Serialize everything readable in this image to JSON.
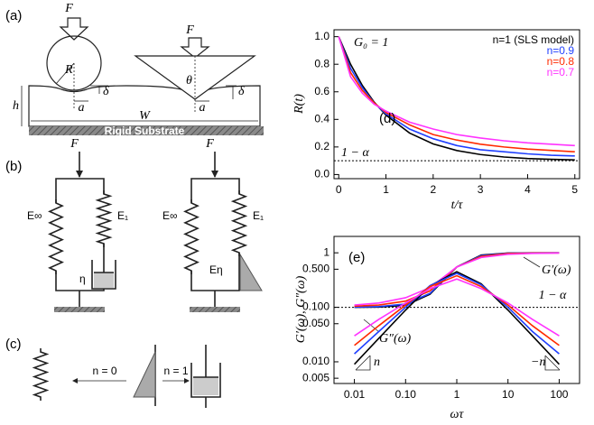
{
  "panel_a": {
    "label": "(a)",
    "forces": [
      "F⃗",
      "F⃗"
    ],
    "radius": "R",
    "angle": "θ",
    "depths": [
      "δ",
      "δ"
    ],
    "contact": [
      "a",
      "a"
    ],
    "height": "h",
    "width": "W",
    "substrate": "Rigid Substrate"
  },
  "panel_b": {
    "label": "(b)",
    "forces": [
      "F⃗",
      "F⃗"
    ],
    "left": [
      "E∞",
      "E₁",
      "η"
    ],
    "right": [
      "E∞",
      "E₁",
      "Eη"
    ]
  },
  "panel_c": {
    "label": "(c)",
    "arrows": [
      "n = 0",
      "n = 1"
    ]
  },
  "chart_data": [
    {
      "type": "line",
      "panel_label": "(d)",
      "x_label": "t/τ",
      "y_label": "R(t)",
      "annotations": [
        "G₀ = 1"
      ],
      "reference": {
        "value": 0.1,
        "label": "1 − α"
      },
      "x": [
        0,
        0.25,
        0.5,
        0.75,
        1,
        1.5,
        2,
        2.5,
        3,
        3.5,
        4,
        4.5,
        5
      ],
      "series": [
        {
          "name": "n=1 (SLS model)",
          "color": "#000000",
          "values": [
            1,
            0.8,
            0.646,
            0.525,
            0.431,
            0.301,
            0.222,
            0.174,
            0.145,
            0.127,
            0.116,
            0.11,
            0.106
          ]
        },
        {
          "name": "n=0.9",
          "color": "#1f3fff",
          "values": [
            1,
            0.77,
            0.63,
            0.52,
            0.44,
            0.33,
            0.26,
            0.21,
            0.18,
            0.165,
            0.15,
            0.14,
            0.135
          ]
        },
        {
          "name": "n=0.8",
          "color": "#ff2a00",
          "values": [
            1,
            0.74,
            0.61,
            0.52,
            0.45,
            0.36,
            0.29,
            0.25,
            0.22,
            0.2,
            0.185,
            0.175,
            0.165
          ]
        },
        {
          "name": "n=0.7",
          "color": "#ff33ff",
          "values": [
            1,
            0.71,
            0.59,
            0.51,
            0.46,
            0.38,
            0.33,
            0.29,
            0.265,
            0.245,
            0.23,
            0.22,
            0.21
          ]
        }
      ],
      "xlim": [
        -0.1,
        5.1
      ],
      "ylim": [
        -0.03,
        1.05
      ],
      "xticks": [
        0,
        1,
        2,
        3,
        4,
        5
      ],
      "yticks": [
        {
          "value": 0,
          "label": "0.0"
        },
        {
          "value": 0.2,
          "label": "0.2"
        },
        {
          "value": 0.4,
          "label": "0.4"
        },
        {
          "value": 0.6,
          "label": "0.6"
        },
        {
          "value": 0.8,
          "label": "0.8"
        },
        {
          "value": 1,
          "label": "1.0"
        }
      ],
      "legend": "upper right"
    },
    {
      "type": "line",
      "panel_label": "(e)",
      "x_label": "ωτ",
      "y_label": "G′(ω), G″(ω)",
      "annotations": [
        "G′(ω)",
        "G″(ω)",
        "n",
        "−n"
      ],
      "reference": {
        "value": 0.1,
        "label": "1 − α"
      },
      "xscale": "log",
      "yscale": "log",
      "x": [
        0.01,
        0.03,
        0.1,
        0.3,
        1,
        3,
        10,
        30,
        100
      ],
      "series": [
        {
          "color": "#000000",
          "values": [
            0.1001,
            0.1008,
            0.109,
            0.174,
            0.55,
            0.91,
            0.991,
            0.999,
            1
          ]
        },
        {
          "color": "#1f3fff",
          "values": [
            0.101,
            0.103,
            0.115,
            0.18,
            0.55,
            0.89,
            0.985,
            0.997,
            0.999
          ]
        },
        {
          "color": "#ff2a00",
          "values": [
            0.105,
            0.11,
            0.13,
            0.2,
            0.55,
            0.86,
            0.97,
            0.99,
            0.995
          ]
        },
        {
          "color": "#ff33ff",
          "values": [
            0.11,
            0.12,
            0.15,
            0.23,
            0.55,
            0.82,
            0.94,
            0.975,
            0.99
          ]
        },
        {
          "color": "#000000",
          "values": [
            0.009,
            0.027,
            0.089,
            0.248,
            0.45,
            0.27,
            0.089,
            0.03,
            0.009
          ]
        },
        {
          "color": "#1f3fff",
          "values": [
            0.014,
            0.036,
            0.1,
            0.25,
            0.42,
            0.26,
            0.1,
            0.036,
            0.014
          ]
        },
        {
          "color": "#ff2a00",
          "values": [
            0.02,
            0.046,
            0.11,
            0.24,
            0.38,
            0.24,
            0.11,
            0.046,
            0.02
          ]
        },
        {
          "color": "#ff33ff",
          "values": [
            0.03,
            0.06,
            0.12,
            0.22,
            0.33,
            0.22,
            0.12,
            0.06,
            0.03
          ]
        }
      ],
      "xlim": [
        0.004,
        250
      ],
      "ylim": [
        0.004,
        2
      ],
      "xticks": [
        0.01,
        {
          "value": 0.1,
          "label": "0.10"
        },
        1,
        10,
        100
      ],
      "yticks": [
        0.005,
        {
          "value": 0.01,
          "label": "0.010"
        },
        {
          "value": 0.05,
          "label": "0.050"
        },
        {
          "value": 0.1,
          "label": "0.100"
        },
        {
          "value": 0.5,
          "label": "0.500"
        },
        1
      ]
    }
  ]
}
